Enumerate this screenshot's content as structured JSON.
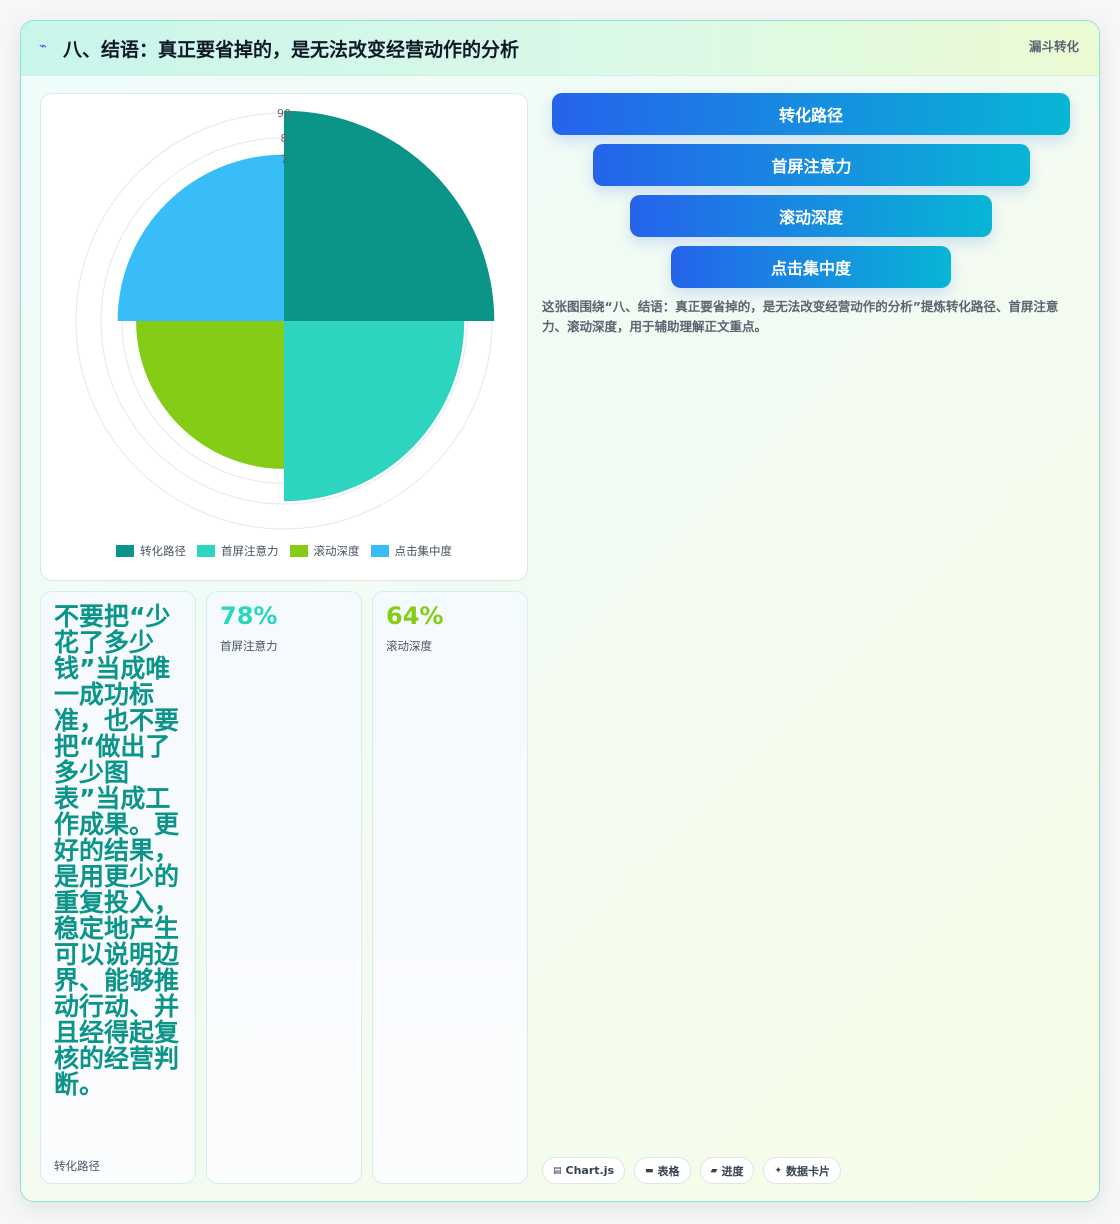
{
  "header": {
    "title": "八、结语：真正要省掉的，是无法改变经营动作的分析",
    "tag": "漏斗转化",
    "icon": "lightning-icon"
  },
  "chart_data": {
    "type": "polarArea",
    "categories": [
      "转化路径",
      "首屏注意力",
      "滚动深度",
      "点击集中度"
    ],
    "values": [
      91,
      78,
      64,
      72
    ],
    "colors": [
      "#0b9488",
      "#2dd4bf",
      "#84cc16",
      "#38bdf8"
    ],
    "r_max": 90,
    "tick_labels": [
      "90",
      "8",
      "7"
    ],
    "legend": "bottom"
  },
  "funnel": {
    "steps": [
      "转化路径",
      "首屏注意力",
      "滚动深度",
      "点击集中度"
    ],
    "caption": "这张图围绕“八、结语：真正要省掉的，是无法改变经营动作的分析”提炼转化路径、首屏注意力、滚动深度，用于辅助理解正文重点。"
  },
  "stats": [
    {
      "value": "不要把“少花了多少钱”当成唯一成功标准，也不要把“做出了多少图表”当成工作成果。更好的结果，是用更少的重复投入，稳定地产生可以说明边界、能够推动行动、并且经得起复核的经营判断。",
      "label": "转化路径",
      "color": "#0b9488"
    },
    {
      "value": "78%",
      "label": "首屏注意力",
      "color": "#2dd4bf"
    },
    {
      "value": "64%",
      "label": "滚动深度",
      "color": "#84cc16"
    }
  ],
  "badges": [
    {
      "icon": "chart-icon",
      "glyph": "▤",
      "label": "Chart.js"
    },
    {
      "icon": "table-icon",
      "glyph": "▬",
      "label": "表格"
    },
    {
      "icon": "progress-icon",
      "glyph": "▰",
      "label": "进度"
    },
    {
      "icon": "sparkle-icon",
      "glyph": "✦",
      "label": "数据卡片"
    }
  ]
}
